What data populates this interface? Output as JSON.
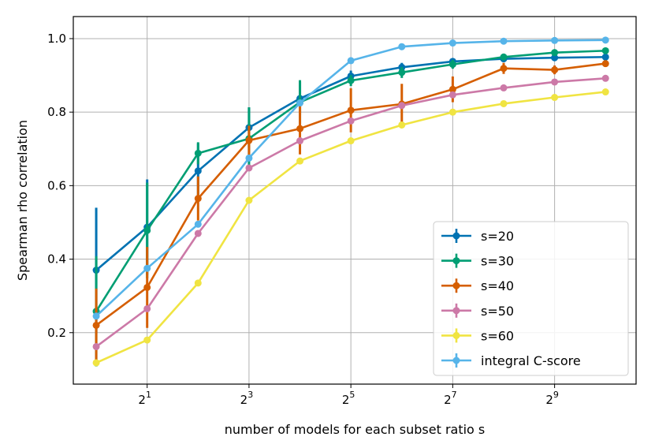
{
  "chart_data": {
    "type": "line",
    "title": "",
    "xlabel": "number of models for each subset ratio s",
    "ylabel": "Spearman rho correlation",
    "x": [
      1,
      2,
      4,
      8,
      16,
      32,
      64,
      128,
      256,
      512,
      1024
    ],
    "x_scale": "log2",
    "xlim_log2": [
      -0.45,
      10.6
    ],
    "ylim": [
      0.06,
      1.06
    ],
    "x_ticks": [
      {
        "exp": 1,
        "base": "2",
        "sup": "1"
      },
      {
        "exp": 3,
        "base": "2",
        "sup": "3"
      },
      {
        "exp": 5,
        "base": "2",
        "sup": "5"
      },
      {
        "exp": 7,
        "base": "2",
        "sup": "7"
      },
      {
        "exp": 9,
        "base": "2",
        "sup": "9"
      }
    ],
    "y_ticks": [
      {
        "value": 0.2,
        "label": "0.2"
      },
      {
        "value": 0.4,
        "label": "0.4"
      },
      {
        "value": 0.6,
        "label": "0.6"
      },
      {
        "value": 0.8,
        "label": "0.8"
      },
      {
        "value": 1.0,
        "label": "1.0"
      }
    ],
    "grid": true,
    "legend_position": "lower-right",
    "series": [
      {
        "name": "s=20",
        "color": "#0072b2",
        "values": [
          0.37,
          0.487,
          0.64,
          0.758,
          0.837,
          0.898,
          0.922,
          0.938,
          0.945,
          0.948,
          0.95
        ],
        "errors": [
          0.17,
          0.13,
          0.075,
          0.055,
          0.045,
          0.015,
          0.012,
          0.008,
          0.005,
          0.004,
          0.003
        ]
      },
      {
        "name": "s=30",
        "color": "#009e73",
        "values": [
          0.258,
          0.478,
          0.688,
          0.728,
          0.827,
          0.886,
          0.908,
          0.93,
          0.95,
          0.962,
          0.967
        ],
        "errors": [
          0.15,
          0.13,
          0.03,
          0.085,
          0.06,
          0.015,
          0.015,
          0.012,
          0.008,
          0.006,
          0.005
        ]
      },
      {
        "name": "s=40",
        "color": "#d55e00",
        "values": [
          0.22,
          0.323,
          0.565,
          0.723,
          0.755,
          0.805,
          0.822,
          0.862,
          0.919,
          0.915,
          0.932
        ],
        "errors": [
          0.1,
          0.11,
          0.06,
          0.04,
          0.07,
          0.06,
          0.055,
          0.035,
          0.015,
          0.012,
          0.008
        ]
      },
      {
        "name": "s=50",
        "color": "#cc79a7",
        "values": [
          0.162,
          0.265,
          0.47,
          0.648,
          0.722,
          0.776,
          0.818,
          0.847,
          0.866,
          0.882,
          0.892
        ],
        "errors": [
          0,
          0,
          0,
          0,
          0,
          0,
          0,
          0,
          0,
          0,
          0
        ]
      },
      {
        "name": "s=60",
        "color": "#f0e442",
        "values": [
          0.118,
          0.18,
          0.335,
          0.56,
          0.667,
          0.722,
          0.765,
          0.8,
          0.823,
          0.84,
          0.855
        ],
        "errors": [
          0,
          0,
          0,
          0,
          0,
          0,
          0,
          0,
          0,
          0,
          0
        ]
      },
      {
        "name": "integral C-score",
        "color": "#56b4e9",
        "values": [
          0.245,
          0.375,
          0.495,
          0.675,
          0.825,
          0.94,
          0.978,
          0.988,
          0.993,
          0.995,
          0.996
        ],
        "errors": [
          0,
          0,
          0,
          0,
          0,
          0,
          0,
          0,
          0,
          0,
          0
        ]
      }
    ]
  }
}
